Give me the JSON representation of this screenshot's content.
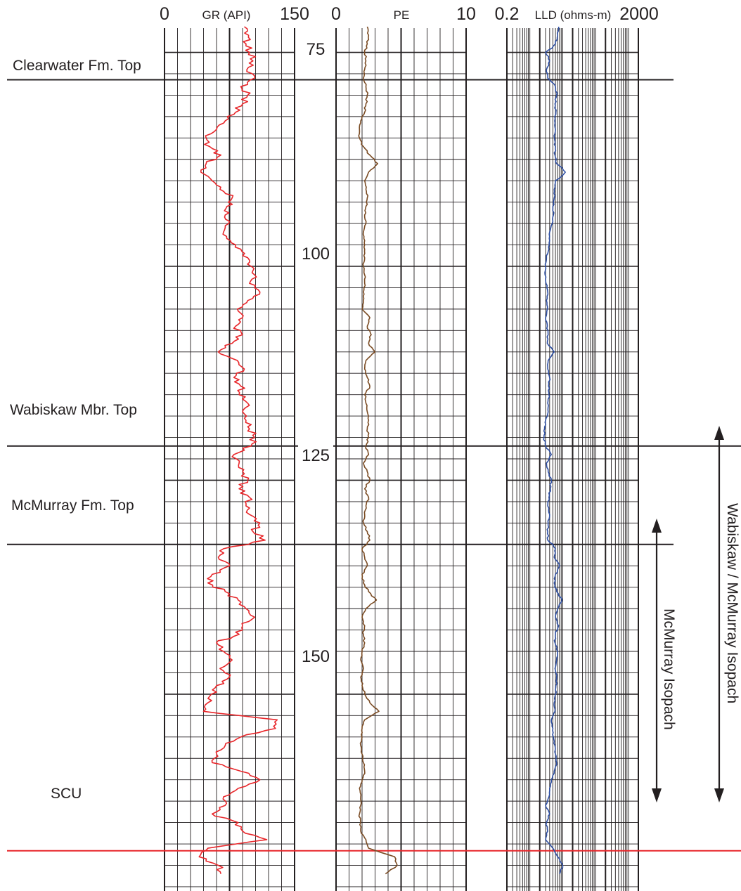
{
  "tracks": {
    "gr": {
      "name": "GR (API)",
      "min_label": "0",
      "max_label": "150",
      "min": 0,
      "max": 150,
      "scale": "linear",
      "color": "#e8262a"
    },
    "pe": {
      "name": "PE",
      "min_label": "0",
      "max_label": "10",
      "min": 0,
      "max": 10,
      "scale": "linear",
      "color": "#7a4b23"
    },
    "lld": {
      "name": "LLD (ohms-m)",
      "min_label": "0.2",
      "max_label": "2000",
      "min": 0.2,
      "max": 2000,
      "scale": "log",
      "color": "#2e4fa3"
    }
  },
  "depth_labels": [
    "75",
    "100",
    "125",
    "150"
  ],
  "markers": [
    {
      "label": "Clearwater Fm. Top",
      "depth": 78.2,
      "color": "#231f20"
    },
    {
      "label": "Wabiskaw Mbr. Top",
      "depth": 121.0,
      "color": "#231f20"
    },
    {
      "label": "McMurray Fm. Top",
      "depth": 132.5,
      "color": "#231f20"
    },
    {
      "label": "SCU",
      "depth": 168.3,
      "color": "#e8262a"
    }
  ],
  "isopachs": [
    {
      "label": "McMurray Isopach",
      "top": 132.5,
      "base": 168.3
    },
    {
      "label": "Wabiskaw / McMurray Isopach",
      "top": 121.0,
      "base": 168.3
    }
  ],
  "chart_data": {
    "type": "line",
    "title": "",
    "ylabel": "",
    "depth_range": [
      72,
      173
    ],
    "depth_axis": "increasing downward",
    "grid": true,
    "series": [
      {
        "name": "GR (API)",
        "x_axis": "gr",
        "depth": [
          72.0,
          73.0,
          74.0,
          75.0,
          76.0,
          77.0,
          78.0,
          79.0,
          80.0,
          81.0,
          82.0,
          83.0,
          84.0,
          85.0,
          86.0,
          87.0,
          88.0,
          89.0,
          90.0,
          91.0,
          92.0,
          93.0,
          94.0,
          95.0,
          96.0,
          97.0,
          98.0,
          99.0,
          100.0,
          101.0,
          102.0,
          103.0,
          104.0,
          105.0,
          106.0,
          107.0,
          108.0,
          109.0,
          110.0,
          111.0,
          112.0,
          113.0,
          114.0,
          115.0,
          116.0,
          117.0,
          118.0,
          119.0,
          120.0,
          121.0,
          122.0,
          123.0,
          124.0,
          125.0,
          126.0,
          127.0,
          128.0,
          129.0,
          130.0,
          131.0,
          132.0,
          133.0,
          134.0,
          135.0,
          136.0,
          137.0,
          138.0,
          139.0,
          140.0,
          141.0,
          142.0,
          143.0,
          144.0,
          145.0,
          146.0,
          147.0,
          148.0,
          149.0,
          150.0,
          151.0,
          152.0,
          153.0,
          154.0,
          155.0,
          156.0,
          157.0,
          158.0,
          159.0,
          160.0,
          161.0,
          162.0,
          163.0,
          164.0,
          165.0,
          166.0,
          167.0,
          168.0,
          169.0,
          170.0,
          171.0
        ],
        "values": [
          92,
          97,
          94,
          98,
          102,
          95,
          104,
          88,
          96,
          90,
          82,
          70,
          60,
          48,
          52,
          65,
          48,
          42,
          55,
          64,
          78,
          72,
          70,
          74,
          68,
          76,
          88,
          96,
          100,
          104,
          98,
          110,
          96,
          84,
          90,
          82,
          90,
          78,
          62,
          84,
          92,
          80,
          88,
          86,
          96,
          90,
          94,
          98,
          104,
          100,
          80,
          86,
          90,
          96,
          86,
          98,
          94,
          98,
          110,
          102,
          116,
          68,
          62,
          75,
          55,
          50,
          70,
          85,
          94,
          104,
          90,
          86,
          60,
          68,
          78,
          64,
          75,
          60,
          54,
          50,
          45,
          130,
          128,
          88,
          70,
          60,
          55,
          88,
          110,
          85,
          68,
          70,
          55,
          85,
          90,
          118,
          50,
          40,
          62,
          65
        ]
      },
      {
        "name": "PE",
        "x_axis": "pe",
        "depth": [
          72.0,
          73.0,
          74.0,
          75.0,
          76.0,
          77.0,
          78.0,
          79.0,
          80.0,
          81.0,
          82.0,
          83.0,
          84.0,
          85.0,
          86.0,
          87.0,
          88.0,
          89.0,
          90.0,
          91.0,
          92.0,
          93.0,
          94.0,
          95.0,
          96.0,
          97.0,
          98.0,
          99.0,
          100.0,
          101.0,
          102.0,
          103.0,
          104.0,
          105.0,
          106.0,
          107.0,
          108.0,
          109.0,
          110.0,
          111.0,
          112.0,
          113.0,
          114.0,
          115.0,
          116.0,
          117.0,
          118.0,
          119.0,
          120.0,
          121.0,
          122.0,
          123.0,
          124.0,
          125.0,
          126.0,
          127.0,
          128.0,
          129.0,
          130.0,
          131.0,
          132.0,
          133.0,
          134.0,
          135.0,
          136.0,
          137.0,
          138.0,
          139.0,
          140.0,
          141.0,
          142.0,
          143.0,
          144.0,
          145.0,
          146.0,
          147.0,
          148.0,
          149.0,
          150.0,
          151.0,
          152.0,
          153.0,
          154.0,
          155.0,
          156.0,
          157.0,
          158.0,
          159.0,
          160.0,
          161.0,
          162.0,
          163.0,
          164.0,
          165.0,
          166.0,
          167.0,
          168.0,
          169.0,
          170.0,
          171.0
        ],
        "values": [
          2.4,
          2.5,
          2.4,
          2.2,
          2.3,
          2.2,
          2.1,
          2.3,
          2.4,
          2.3,
          2.2,
          1.9,
          1.8,
          1.8,
          2.1,
          2.6,
          3.2,
          2.5,
          2.2,
          2.3,
          2.4,
          2.3,
          2.2,
          2.3,
          2.1,
          2.2,
          2.2,
          2.2,
          2.1,
          2.2,
          2.2,
          2.1,
          2.1,
          2.0,
          2.6,
          2.4,
          2.7,
          2.5,
          3.0,
          2.3,
          2.2,
          2.4,
          2.6,
          2.2,
          2.3,
          2.4,
          2.5,
          2.4,
          2.5,
          2.3,
          2.5,
          2.1,
          2.4,
          2.6,
          2.2,
          2.5,
          2.3,
          2.2,
          2.1,
          2.4,
          2.6,
          2.0,
          2.2,
          2.4,
          2.0,
          2.1,
          2.5,
          3.1,
          2.3,
          2.0,
          2.2,
          2.1,
          2.2,
          2.0,
          1.9,
          2.1,
          1.9,
          2.0,
          2.2,
          2.6,
          3.3,
          2.2,
          2.0,
          2.0,
          1.9,
          2.0,
          2.1,
          2.2,
          2.0,
          1.8,
          1.9,
          1.9,
          1.8,
          1.9,
          1.9,
          2.3,
          2.5,
          4.5,
          4.7,
          3.8
        ]
      },
      {
        "name": "LLD (ohms-m)",
        "x_axis": "lld",
        "depth": [
          72.0,
          73.0,
          74.0,
          75.0,
          76.0,
          77.0,
          78.0,
          79.0,
          80.0,
          81.0,
          82.0,
          83.0,
          84.0,
          85.0,
          86.0,
          87.0,
          88.0,
          89.0,
          90.0,
          91.0,
          92.0,
          93.0,
          94.0,
          95.0,
          96.0,
          97.0,
          98.0,
          99.0,
          100.0,
          101.0,
          102.0,
          103.0,
          104.0,
          105.0,
          106.0,
          107.0,
          108.0,
          109.0,
          110.0,
          111.0,
          112.0,
          113.0,
          114.0,
          115.0,
          116.0,
          117.0,
          118.0,
          119.0,
          120.0,
          121.0,
          122.0,
          123.0,
          124.0,
          125.0,
          126.0,
          127.0,
          128.0,
          129.0,
          130.0,
          131.0,
          132.0,
          133.0,
          134.0,
          135.0,
          136.0,
          137.0,
          138.0,
          139.0,
          140.0,
          141.0,
          142.0,
          143.0,
          144.0,
          145.0,
          146.0,
          147.0,
          148.0,
          149.0,
          150.0,
          151.0,
          152.0,
          153.0,
          154.0,
          155.0,
          156.0,
          157.0,
          158.0,
          159.0,
          160.0,
          161.0,
          162.0,
          163.0,
          164.0,
          165.0,
          166.0,
          167.0,
          168.0,
          169.0,
          170.0,
          171.0
        ],
        "values": [
          7.5,
          7.0,
          6.0,
          3.0,
          4.0,
          3.2,
          3.5,
          6.0,
          6.5,
          5.8,
          6.2,
          5.7,
          6.0,
          5.6,
          6.0,
          5.8,
          6.5,
          12.0,
          6.0,
          5.5,
          5.5,
          5.0,
          5.2,
          4.8,
          4.0,
          4.0,
          3.8,
          3.2,
          3.0,
          2.9,
          3.1,
          3.5,
          3.2,
          3.4,
          3.0,
          3.4,
          3.6,
          3.4,
          5.5,
          3.6,
          3.5,
          4.0,
          3.7,
          3.8,
          3.5,
          3.6,
          3.0,
          2.8,
          2.7,
          3.0,
          4.5,
          3.2,
          3.6,
          4.5,
          4.2,
          3.8,
          3.5,
          4.0,
          3.6,
          3.5,
          3.5,
          6.0,
          5.5,
          8.0,
          6.0,
          5.5,
          6.5,
          9.5,
          7.0,
          6.0,
          7.5,
          6.0,
          5.8,
          7.0,
          6.5,
          5.8,
          6.5,
          6.2,
          6.0,
          5.5,
          5.8,
          4.5,
          5.0,
          5.2,
          5.8,
          6.0,
          6.5,
          5.5,
          4.5,
          4.0,
          3.8,
          3.0,
          4.0,
          3.2,
          3.5,
          3.0,
          5.0,
          7.0,
          10.0,
          8.0
        ]
      }
    ]
  }
}
